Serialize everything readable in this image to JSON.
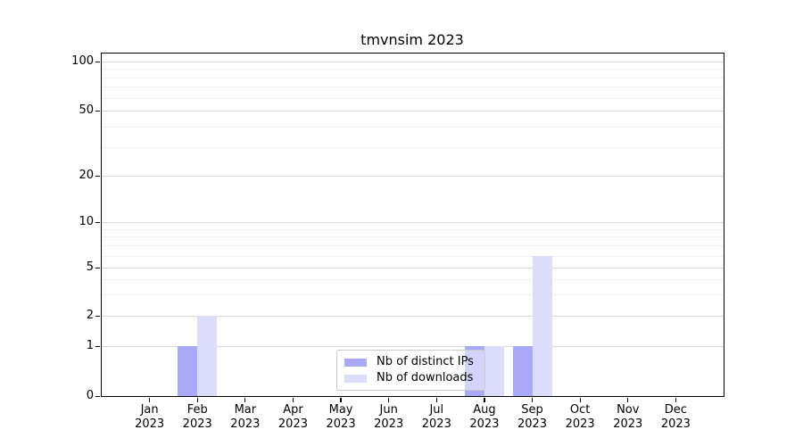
{
  "title": "tmvnsim 2023",
  "legend": {
    "items": [
      {
        "label": "Nb of distinct IPs",
        "color": "#a9a9f7"
      },
      {
        "label": "Nb of downloads",
        "color": "#dcdcfb"
      }
    ]
  },
  "chart_data": {
    "type": "bar",
    "title": "tmvnsim 2023",
    "categories": [
      "Jan 2023",
      "Feb 2023",
      "Mar 2023",
      "Apr 2023",
      "May 2023",
      "Jun 2023",
      "Jul 2023",
      "Aug 2023",
      "Sep 2023",
      "Oct 2023",
      "Nov 2023",
      "Dec 2023"
    ],
    "series": [
      {
        "name": "Nb of distinct IPs",
        "color": "#a9a9f7",
        "values": [
          0,
          1,
          0,
          0,
          0,
          0,
          0,
          1,
          1,
          0,
          0,
          0
        ]
      },
      {
        "name": "Nb of downloads",
        "color": "#dcdcfb",
        "values": [
          0,
          2,
          0,
          0,
          0,
          0,
          0,
          1,
          6,
          0,
          0,
          0
        ]
      }
    ],
    "y_axis": {
      "scale": "log-like",
      "tick_values": [
        0,
        1,
        2,
        5,
        10,
        20,
        50,
        100
      ],
      "minor_gridline_values": [
        3,
        4,
        6,
        7,
        8,
        9,
        30,
        40,
        60,
        70,
        80,
        90
      ],
      "top_value": 115
    },
    "grid": "horizontal major+minor",
    "legend_position": "lower center inside axes"
  },
  "colors": {
    "bar_distinct_ips": "#a9a9f7",
    "bar_downloads": "#dcdcfb",
    "grid_major": "#d9d9d9",
    "grid_minor": "#f2f2f2",
    "axis_spine": "#000000",
    "background": "#ffffff"
  }
}
